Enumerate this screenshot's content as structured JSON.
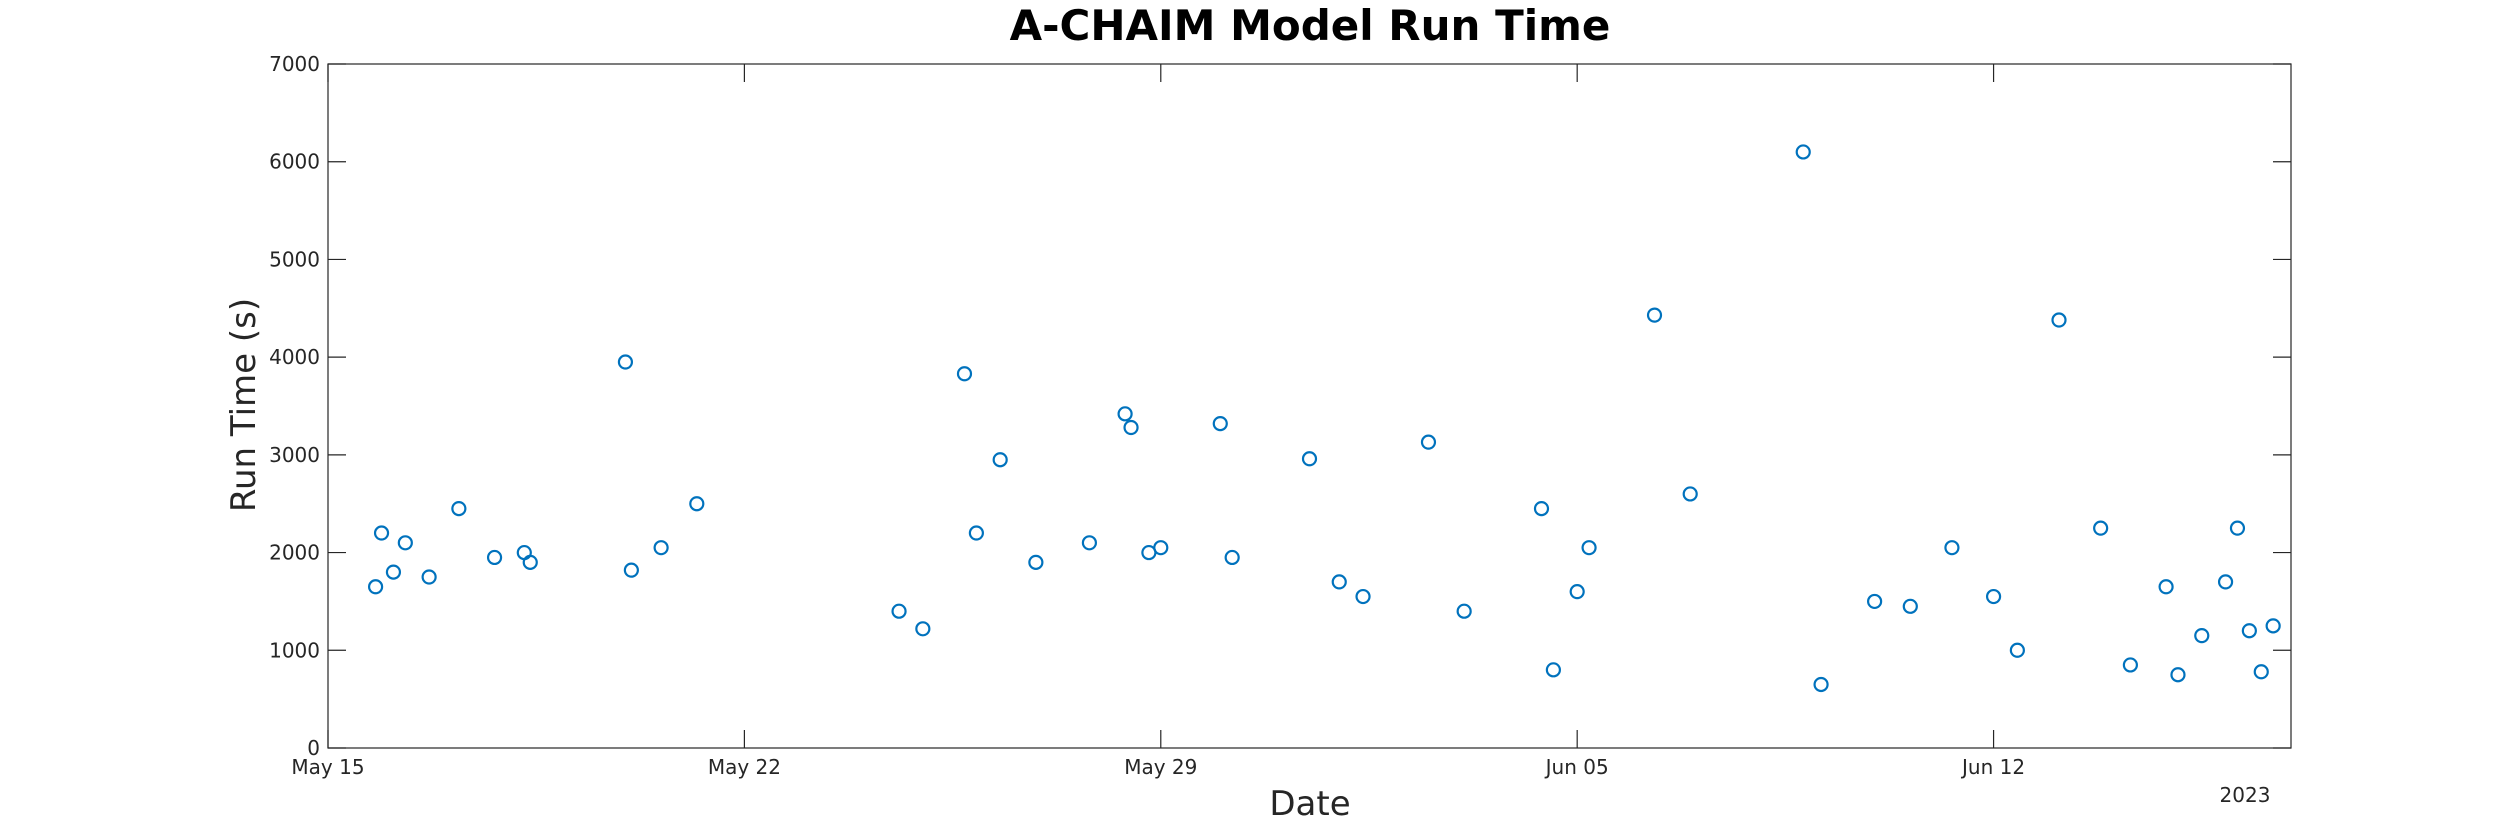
{
  "chart_data": {
    "type": "scatter",
    "title": "A-CHAIM Model Run Time",
    "xlabel": "Date",
    "ylabel": "Run Time (s)",
    "x_tick_labels": [
      "May 15",
      "May 22",
      "May 29",
      "Jun 05",
      "Jun 12"
    ],
    "x_ticks_day": [
      0,
      7,
      14,
      21,
      28
    ],
    "x_secondary_label": "2023",
    "xlim_day": [
      0,
      33
    ],
    "ylim": [
      0,
      7000
    ],
    "y_ticks": [
      0,
      1000,
      2000,
      3000,
      4000,
      5000,
      6000,
      7000
    ],
    "y_tick_labels": [
      "0",
      "1000",
      "2000",
      "3000",
      "4000",
      "5000",
      "6000",
      "7000"
    ],
    "grid": false,
    "legend": "none",
    "marker": "open-circle",
    "color": "#0072BD",
    "series": [
      {
        "x_day": [
          0.8,
          0.9,
          1.1,
          1.3,
          1.7,
          2.2,
          2.8,
          3.3,
          3.4,
          5.0,
          5.1,
          5.6,
          6.2,
          9.6,
          10.0,
          10.7,
          10.9,
          11.3,
          11.9,
          12.8,
          13.4,
          13.5,
          13.8,
          14.0,
          15.0,
          15.2,
          16.5,
          17.0,
          17.4,
          18.5,
          19.1,
          20.4,
          20.6,
          21.0,
          21.2,
          22.3,
          22.9,
          24.8,
          25.1,
          26.0,
          26.6,
          27.3,
          28.0,
          28.4,
          29.1,
          29.8,
          30.3,
          30.9,
          31.1,
          31.5,
          31.9,
          32.1,
          32.3,
          32.5,
          32.7
        ],
        "y": [
          1650,
          2200,
          1800,
          2100,
          1750,
          2450,
          1950,
          2000,
          1900,
          3950,
          1820,
          2050,
          2500,
          1400,
          1220,
          3830,
          2200,
          2950,
          1900,
          2100,
          3420,
          3280,
          2000,
          2050,
          3320,
          1950,
          2960,
          1700,
          1550,
          3130,
          1400,
          2450,
          800,
          1600,
          2050,
          4430,
          2600,
          6100,
          650,
          1500,
          1450,
          2050,
          1550,
          1000,
          4380,
          2250,
          850,
          1650,
          750,
          1150,
          1700,
          2250,
          1200,
          780,
          1250
        ]
      }
    ]
  }
}
